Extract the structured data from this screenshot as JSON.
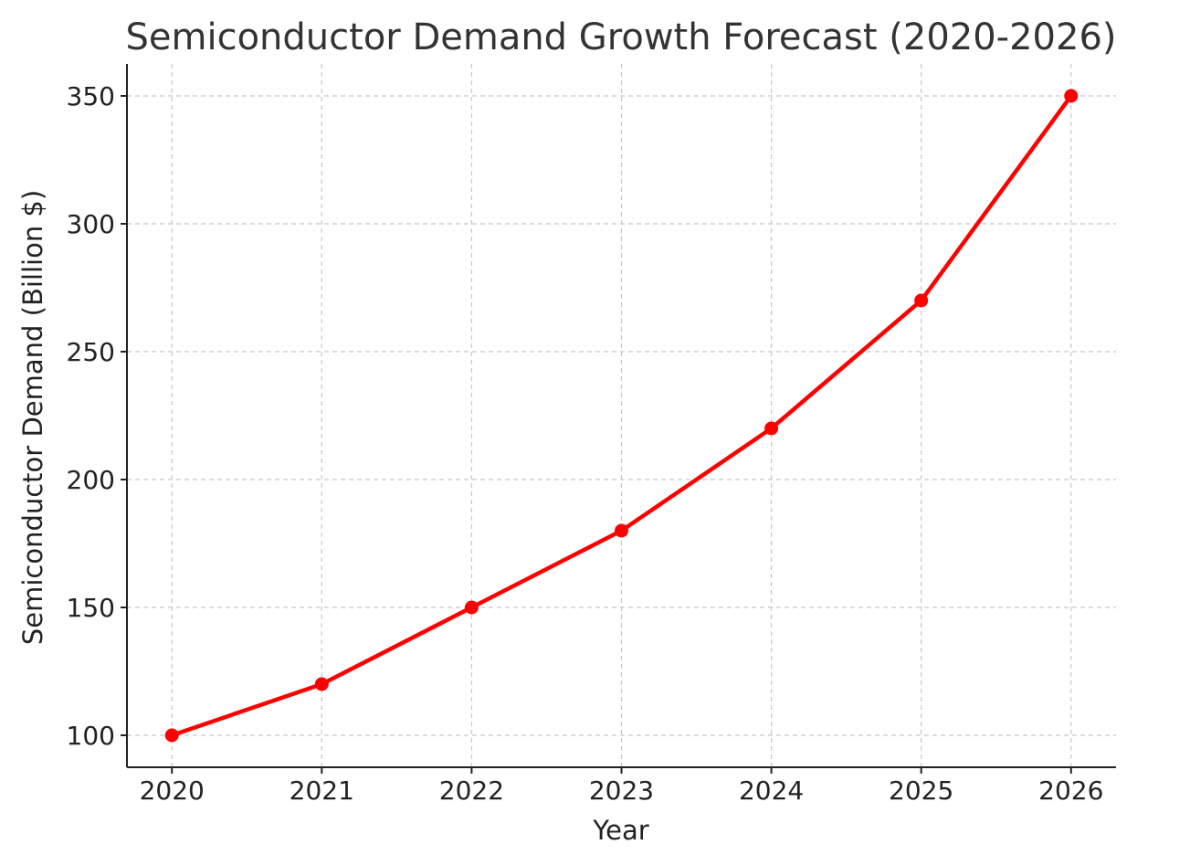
{
  "chart_data": {
    "type": "line",
    "title": "Semiconductor Demand Growth Forecast (2020-2026)",
    "xlabel": "Year",
    "ylabel": "Semiconductor Demand (Billion $)",
    "x": [
      2020,
      2021,
      2022,
      2023,
      2024,
      2025,
      2026
    ],
    "categories": [
      "2020",
      "2021",
      "2022",
      "2023",
      "2024",
      "2025",
      "2026"
    ],
    "series": [
      {
        "name": "Semiconductor Demand",
        "values": [
          100,
          120,
          150,
          180,
          220,
          270,
          350
        ],
        "color": "#ff0000",
        "marker": "circle"
      }
    ],
    "yticks": [
      100,
      150,
      200,
      250,
      300,
      350
    ],
    "ylim": [
      87.5,
      362.5
    ],
    "xlim": [
      2019.7,
      2026.3
    ],
    "grid": true,
    "legend": "none"
  }
}
